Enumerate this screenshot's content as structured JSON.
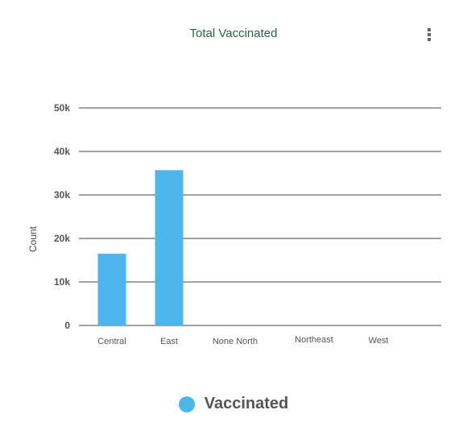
{
  "menu": {
    "icon": "kebab-menu-icon"
  },
  "colors": {
    "title": "#1f6b3a",
    "bar": "#4db6ee",
    "grid": "#444444",
    "tick_text": "#555555"
  },
  "chart_data": {
    "type": "bar",
    "title": "Total Vaccinated",
    "xlabel": "",
    "ylabel": "Count",
    "categories": [
      "Central",
      "East",
      "None North",
      "Northeast",
      "West"
    ],
    "series": [
      {
        "name": "Vaccinated",
        "values": [
          16500,
          35700,
          0,
          0,
          0
        ]
      }
    ],
    "ylim": [
      0,
      50000
    ],
    "yticks": [
      {
        "value": 0,
        "label": "0"
      },
      {
        "value": 10000,
        "label": "10k"
      },
      {
        "value": 20000,
        "label": "20k"
      },
      {
        "value": 30000,
        "label": "30k"
      },
      {
        "value": 40000,
        "label": "40k"
      },
      {
        "value": 50000,
        "label": "50k"
      }
    ],
    "grid": true,
    "legend_position": "bottom"
  }
}
